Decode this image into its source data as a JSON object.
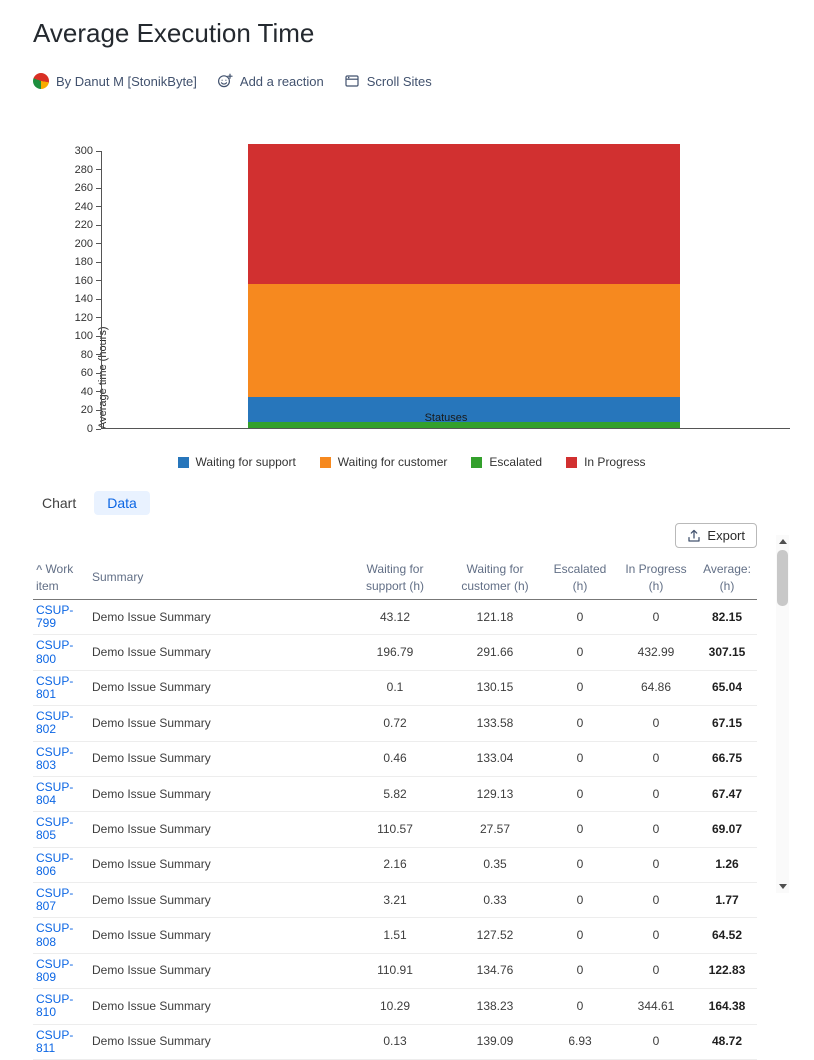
{
  "colors": {
    "link": "#0C66E4",
    "tab_active_bg": "#E9F2FF",
    "tab_active_text": "#0C66E4",
    "axis": "#555555"
  },
  "icons": {
    "sort_ascending": "^"
  },
  "header": {
    "title": "Average Execution Time",
    "author": "By Danut M [StonikByte]",
    "reaction_label": "Add a reaction",
    "scroll_sites_label": "Scroll Sites"
  },
  "chart_data": {
    "type": "bar",
    "stacked": true,
    "categories": [
      ""
    ],
    "xlabel": "Statuses",
    "ylabel": "Average time (hours)",
    "ylim": [
      0,
      300
    ],
    "ytick_step": 20,
    "grid": false,
    "legend_position": "bottom",
    "series": [
      {
        "name": "Escalated",
        "color": "#33A02C",
        "values": [
          6
        ]
      },
      {
        "name": "Waiting for support",
        "color": "#2776BB",
        "values": [
          28
        ]
      },
      {
        "name": "Waiting for customer",
        "color": "#F6891F",
        "values": [
          121
        ]
      },
      {
        "name": "In Progress",
        "color": "#D13030",
        "values": [
          152
        ]
      }
    ],
    "stack_order": "bottom-to-top as listed in series",
    "legend": [
      {
        "label": "Waiting for support",
        "color": "#2776BB"
      },
      {
        "label": "Waiting for customer",
        "color": "#F6891F"
      },
      {
        "label": "Escalated",
        "color": "#33A02C"
      },
      {
        "label": "In Progress",
        "color": "#D13030"
      }
    ]
  },
  "tabs": {
    "chart": "Chart",
    "data": "Data",
    "active": "Data"
  },
  "toolbar": {
    "export_label": "Export"
  },
  "table": {
    "headers": [
      "Work item",
      "Summary",
      "Waiting for support (h)",
      "Waiting for customer (h)",
      "Escalated (h)",
      "In Progress (h)",
      "Average: (h)"
    ],
    "rows": [
      {
        "id": "CSUP-799",
        "summary": "Demo Issue Summary",
        "support": 43.12,
        "customer": 121.18,
        "escalated": 0,
        "in_progress": 0,
        "average": 82.15
      },
      {
        "id": "CSUP-800",
        "summary": "Demo Issue Summary",
        "support": 196.79,
        "customer": 291.66,
        "escalated": 0,
        "in_progress": 432.99,
        "average": 307.15
      },
      {
        "id": "CSUP-801",
        "summary": "Demo Issue Summary",
        "support": 0.1,
        "customer": 130.15,
        "escalated": 0,
        "in_progress": 64.86,
        "average": 65.04
      },
      {
        "id": "CSUP-802",
        "summary": "Demo Issue Summary",
        "support": 0.72,
        "customer": 133.58,
        "escalated": 0,
        "in_progress": 0,
        "average": 67.15
      },
      {
        "id": "CSUP-803",
        "summary": "Demo Issue Summary",
        "support": 0.46,
        "customer": 133.04,
        "escalated": 0,
        "in_progress": 0,
        "average": 66.75
      },
      {
        "id": "CSUP-804",
        "summary": "Demo Issue Summary",
        "support": 5.82,
        "customer": 129.13,
        "escalated": 0,
        "in_progress": 0,
        "average": 67.47
      },
      {
        "id": "CSUP-805",
        "summary": "Demo Issue Summary",
        "support": 110.57,
        "customer": 27.57,
        "escalated": 0,
        "in_progress": 0,
        "average": 69.07
      },
      {
        "id": "CSUP-806",
        "summary": "Demo Issue Summary",
        "support": 2.16,
        "customer": 0.35,
        "escalated": 0,
        "in_progress": 0,
        "average": 1.26
      },
      {
        "id": "CSUP-807",
        "summary": "Demo Issue Summary",
        "support": 3.21,
        "customer": 0.33,
        "escalated": 0,
        "in_progress": 0,
        "average": 1.77
      },
      {
        "id": "CSUP-808",
        "summary": "Demo Issue Summary",
        "support": 1.51,
        "customer": 127.52,
        "escalated": 0,
        "in_progress": 0,
        "average": 64.52
      },
      {
        "id": "CSUP-809",
        "summary": "Demo Issue Summary",
        "support": 110.91,
        "customer": 134.76,
        "escalated": 0,
        "in_progress": 0,
        "average": 122.83
      },
      {
        "id": "CSUP-810",
        "summary": "Demo Issue Summary",
        "support": 10.29,
        "customer": 138.23,
        "escalated": 0,
        "in_progress": 344.61,
        "average": 164.38
      },
      {
        "id": "CSUP-811",
        "summary": "Demo Issue Summary",
        "support": 0.13,
        "customer": 139.09,
        "escalated": 6.93,
        "in_progress": 0,
        "average": 48.72
      }
    ]
  }
}
